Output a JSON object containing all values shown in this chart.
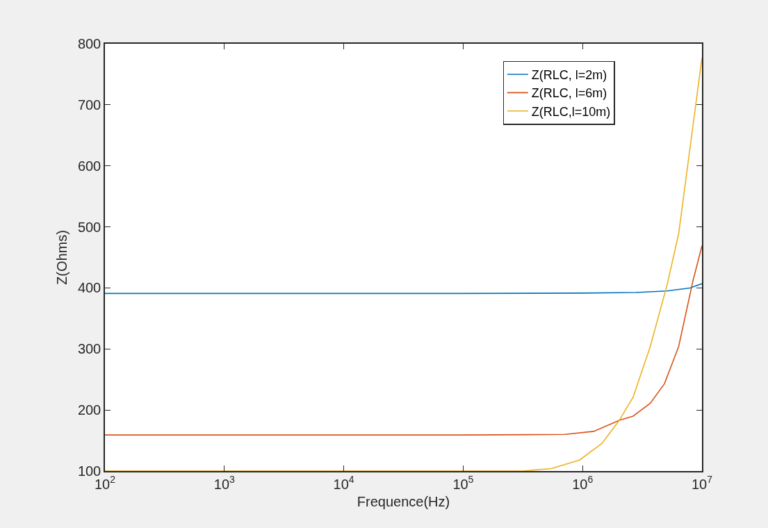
{
  "chart_data": {
    "type": "line",
    "xlabel": "Frequence(Hz)",
    "ylabel": "Z(Ohms)",
    "log": "x",
    "xlim": [
      100,
      10000000
    ],
    "xticks": [
      {
        "value": 100,
        "label": "10$^{2}$"
      },
      {
        "value": 1000,
        "label": "10$^{3}$"
      },
      {
        "value": 10000,
        "label": "10$^{4}$"
      },
      {
        "value": 100000,
        "label": "10$^{5}$"
      },
      {
        "value": 1000000,
        "label": "10$^{6}$"
      },
      {
        "value": 10000000,
        "label": "10$^{7}$"
      }
    ],
    "ylim": [
      100,
      800
    ],
    "yticks": [
      100,
      200,
      300,
      400,
      500,
      600,
      700,
      800
    ],
    "grid": false,
    "legend": "top right",
    "marker": "none",
    "line_style": "solid",
    "series": [
      {
        "name": "Z(RLC, l=2m)",
        "color": "#0072bd",
        "x": [
          100,
          100000,
          1000000,
          2800000,
          5120000,
          7940000,
          10000000
        ],
        "values": [
          391,
          391,
          391.5,
          392.5,
          395,
          400,
          407
        ]
      },
      {
        "name": "Z(RLC, l=6m)",
        "color": "#d95319",
        "x": [
          100,
          100000,
          713000,
          1240000,
          2030000,
          2650000,
          3690000,
          4850000,
          6380000,
          8390000,
          10000000
        ],
        "values": [
          159,
          159,
          160,
          165,
          183,
          190,
          211,
          243,
          304,
          411,
          469
        ]
      },
      {
        "name": "Z(RLC,l=10m)",
        "color": "#edb120",
        "x": [
          100,
          100000,
          315000,
          546000,
          942000,
          1450000,
          2030000,
          2650000,
          3690000,
          5120000,
          6380000,
          7940000,
          10000000
        ],
        "values": [
          100,
          100,
          100,
          104,
          118,
          145,
          183,
          221,
          304,
          406,
          489,
          629,
          777
        ]
      }
    ]
  }
}
